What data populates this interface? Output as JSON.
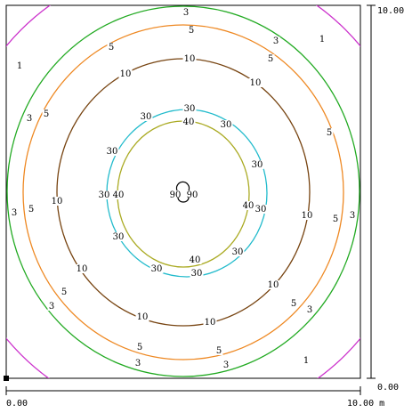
{
  "plot": {
    "scale": {
      "x_start": "0.00",
      "x_end": "10.00 m",
      "y_start": "0.00",
      "y_end": "10.00"
    },
    "center_labels": [
      "90",
      "90"
    ]
  },
  "contours": [
    {
      "level": "1",
      "color": "#cc33cc"
    },
    {
      "level": "3",
      "color": "#22aa22"
    },
    {
      "level": "5",
      "color": "#ee8822"
    },
    {
      "level": "10",
      "color": "#774411"
    },
    {
      "level": "30",
      "color": "#22bbcc"
    },
    {
      "level": "40",
      "color": "#aaaa22"
    },
    {
      "level": "90",
      "color": "#000000"
    }
  ]
}
